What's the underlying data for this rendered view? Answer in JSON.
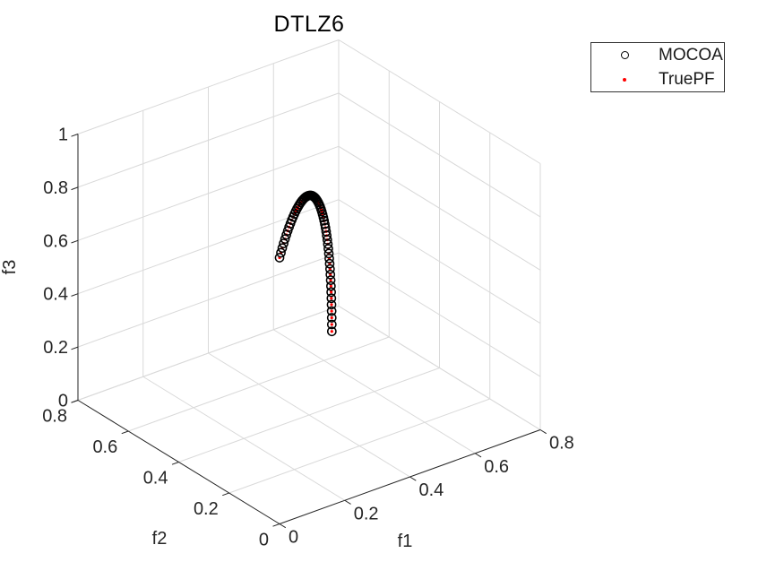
{
  "figure": {
    "background": "#ffffff"
  },
  "chart_data": {
    "type": "scatter",
    "projection": "3d",
    "title": "DTLZ6",
    "xlabel": "f1",
    "ylabel": "f2",
    "zlabel": "f3",
    "xlim": [
      0,
      0.8
    ],
    "ylim": [
      0,
      0.8
    ],
    "zlim": [
      0,
      1
    ],
    "xticks": [
      0,
      0.2,
      0.4,
      0.6,
      0.8
    ],
    "yticks": [
      0,
      0.2,
      0.4,
      0.6,
      0.8
    ],
    "zticks": [
      0,
      0.2,
      0.4,
      0.6,
      0.8,
      1
    ],
    "grid": true,
    "view": {
      "azimuth": -37.5,
      "elevation": 30
    },
    "colors": {
      "grid": "#d9d9d9",
      "axis": "#262626",
      "tick_label": "#262626",
      "title": "#000000"
    },
    "legend": {
      "position": "northeast",
      "border_color": "#333333",
      "background": "#ffffff",
      "entries": [
        {
          "label": "MOCOA",
          "marker": "open-circle",
          "color": "#000000"
        },
        {
          "label": "TruePF",
          "marker": "dot",
          "color": "#ff0000"
        }
      ]
    },
    "series": [
      {
        "name": "MOCOA",
        "marker": "open-circle",
        "color": "#000000",
        "marker_size": 9,
        "points": [
          [
            0.7071,
            0.7071,
            0
          ],
          [
            0.7069,
            0.7069,
            0.0262
          ],
          [
            0.7061,
            0.7061,
            0.0523
          ],
          [
            0.7049,
            0.7049,
            0.0785
          ],
          [
            0.7032,
            0.7032,
            0.1045
          ],
          [
            0.7011,
            0.7011,
            0.1305
          ],
          [
            0.6984,
            0.6984,
            0.1564
          ],
          [
            0.6953,
            0.6953,
            0.1822
          ],
          [
            0.6917,
            0.6917,
            0.2079
          ],
          [
            0.6876,
            0.6876,
            0.2334
          ],
          [
            0.683,
            0.683,
            0.2588
          ],
          [
            0.678,
            0.678,
            0.284
          ],
          [
            0.6725,
            0.6725,
            0.309
          ],
          [
            0.6666,
            0.6666,
            0.3338
          ],
          [
            0.6601,
            0.6601,
            0.3584
          ],
          [
            0.6533,
            0.6533,
            0.3827
          ],
          [
            0.646,
            0.646,
            0.4067
          ],
          [
            0.6382,
            0.6382,
            0.4305
          ],
          [
            0.6301,
            0.6301,
            0.454
          ],
          [
            0.6214,
            0.6214,
            0.4772
          ],
          [
            0.6124,
            0.6124,
            0.5
          ],
          [
            0.6029,
            0.6029,
            0.5225
          ],
          [
            0.5931,
            0.5931,
            0.5446
          ],
          [
            0.5828,
            0.5828,
            0.5664
          ],
          [
            0.5721,
            0.5721,
            0.5878
          ],
          [
            0.561,
            0.561,
            0.6088
          ],
          [
            0.5495,
            0.5495,
            0.6293
          ],
          [
            0.5377,
            0.5377,
            0.6494
          ],
          [
            0.5255,
            0.5255,
            0.6691
          ],
          [
            0.5129,
            0.5129,
            0.6884
          ],
          [
            0.5,
            0.5,
            0.7071
          ],
          [
            0.4868,
            0.4868,
            0.7254
          ],
          [
            0.4732,
            0.4732,
            0.7431
          ],
          [
            0.4592,
            0.4592,
            0.7604
          ],
          [
            0.445,
            0.445,
            0.7771
          ],
          [
            0.4305,
            0.4305,
            0.7934
          ],
          [
            0.4157,
            0.4157,
            0.809
          ],
          [
            0.4005,
            0.4005,
            0.8241
          ],
          [
            0.3851,
            0.3851,
            0.8387
          ],
          [
            0.3695,
            0.3695,
            0.8526
          ],
          [
            0.3536,
            0.3536,
            0.866
          ],
          [
            0.3374,
            0.3374,
            0.8788
          ],
          [
            0.321,
            0.321,
            0.891
          ],
          [
            0.3044,
            0.3044,
            0.9026
          ],
          [
            0.2876,
            0.2876,
            0.9135
          ],
          [
            0.2706,
            0.2706,
            0.9239
          ],
          [
            0.2534,
            0.2534,
            0.9336
          ],
          [
            0.2361,
            0.2361,
            0.9426
          ],
          [
            0.2185,
            0.2185,
            0.9511
          ],
          [
            0.2008,
            0.2008,
            0.9588
          ],
          [
            0.183,
            0.183,
            0.9659
          ],
          [
            0.1651,
            0.1651,
            0.9724
          ],
          [
            0.147,
            0.147,
            0.9781
          ],
          [
            0.1289,
            0.1289,
            0.9832
          ],
          [
            0.1106,
            0.1106,
            0.9877
          ],
          [
            0.0923,
            0.0923,
            0.9914
          ],
          [
            0.0739,
            0.0739,
            0.9945
          ],
          [
            0.0555,
            0.0555,
            0.9969
          ],
          [
            0.037,
            0.037,
            0.9986
          ],
          [
            0.0185,
            0.0185,
            0.9997
          ],
          [
            0,
            0,
            1
          ]
        ]
      },
      {
        "name": "TruePF",
        "marker": "dot",
        "color": "#ff0000",
        "marker_size": 3,
        "points": [
          [
            0.7071,
            0.7071,
            0
          ],
          [
            0.7069,
            0.7069,
            0.0262
          ],
          [
            0.7061,
            0.7061,
            0.0523
          ],
          [
            0.7049,
            0.7049,
            0.0785
          ],
          [
            0.7032,
            0.7032,
            0.1045
          ],
          [
            0.7011,
            0.7011,
            0.1305
          ],
          [
            0.6984,
            0.6984,
            0.1564
          ],
          [
            0.6953,
            0.6953,
            0.1822
          ],
          [
            0.6917,
            0.6917,
            0.2079
          ],
          [
            0.6876,
            0.6876,
            0.2334
          ],
          [
            0.683,
            0.683,
            0.2588
          ],
          [
            0.678,
            0.678,
            0.284
          ],
          [
            0.6725,
            0.6725,
            0.309
          ],
          [
            0.6666,
            0.6666,
            0.3338
          ],
          [
            0.6601,
            0.6601,
            0.3584
          ],
          [
            0.6533,
            0.6533,
            0.3827
          ],
          [
            0.646,
            0.646,
            0.4067
          ],
          [
            0.6382,
            0.6382,
            0.4305
          ],
          [
            0.6301,
            0.6301,
            0.454
          ],
          [
            0.6214,
            0.6214,
            0.4772
          ],
          [
            0.6124,
            0.6124,
            0.5
          ],
          [
            0.6029,
            0.6029,
            0.5225
          ],
          [
            0.5931,
            0.5931,
            0.5446
          ],
          [
            0.5828,
            0.5828,
            0.5664
          ],
          [
            0.5721,
            0.5721,
            0.5878
          ],
          [
            0.561,
            0.561,
            0.6088
          ],
          [
            0.5495,
            0.5495,
            0.6293
          ],
          [
            0.5377,
            0.5377,
            0.6494
          ],
          [
            0.5255,
            0.5255,
            0.6691
          ],
          [
            0.5129,
            0.5129,
            0.6884
          ],
          [
            0.5,
            0.5,
            0.7071
          ],
          [
            0.4868,
            0.4868,
            0.7254
          ],
          [
            0.4732,
            0.4732,
            0.7431
          ],
          [
            0.4592,
            0.4592,
            0.7604
          ],
          [
            0.445,
            0.445,
            0.7771
          ],
          [
            0.4305,
            0.4305,
            0.7934
          ],
          [
            0.4157,
            0.4157,
            0.809
          ],
          [
            0.4005,
            0.4005,
            0.8241
          ],
          [
            0.3851,
            0.3851,
            0.8387
          ],
          [
            0.3695,
            0.3695,
            0.8526
          ],
          [
            0.3536,
            0.3536,
            0.866
          ],
          [
            0.3374,
            0.3374,
            0.8788
          ],
          [
            0.321,
            0.321,
            0.891
          ],
          [
            0.3044,
            0.3044,
            0.9026
          ],
          [
            0.2876,
            0.2876,
            0.9135
          ],
          [
            0.2706,
            0.2706,
            0.9239
          ],
          [
            0.2534,
            0.2534,
            0.9336
          ],
          [
            0.2361,
            0.2361,
            0.9426
          ],
          [
            0.2185,
            0.2185,
            0.9511
          ],
          [
            0.2008,
            0.2008,
            0.9588
          ],
          [
            0.183,
            0.183,
            0.9659
          ],
          [
            0.1651,
            0.1651,
            0.9724
          ],
          [
            0.147,
            0.147,
            0.9781
          ],
          [
            0.1289,
            0.1289,
            0.9832
          ],
          [
            0.1106,
            0.1106,
            0.9877
          ],
          [
            0.0923,
            0.0923,
            0.9914
          ],
          [
            0.0739,
            0.0739,
            0.9945
          ],
          [
            0.0555,
            0.0555,
            0.9969
          ],
          [
            0.037,
            0.037,
            0.9986
          ],
          [
            0.0185,
            0.0185,
            0.9997
          ],
          [
            0,
            0,
            1
          ]
        ]
      }
    ]
  }
}
